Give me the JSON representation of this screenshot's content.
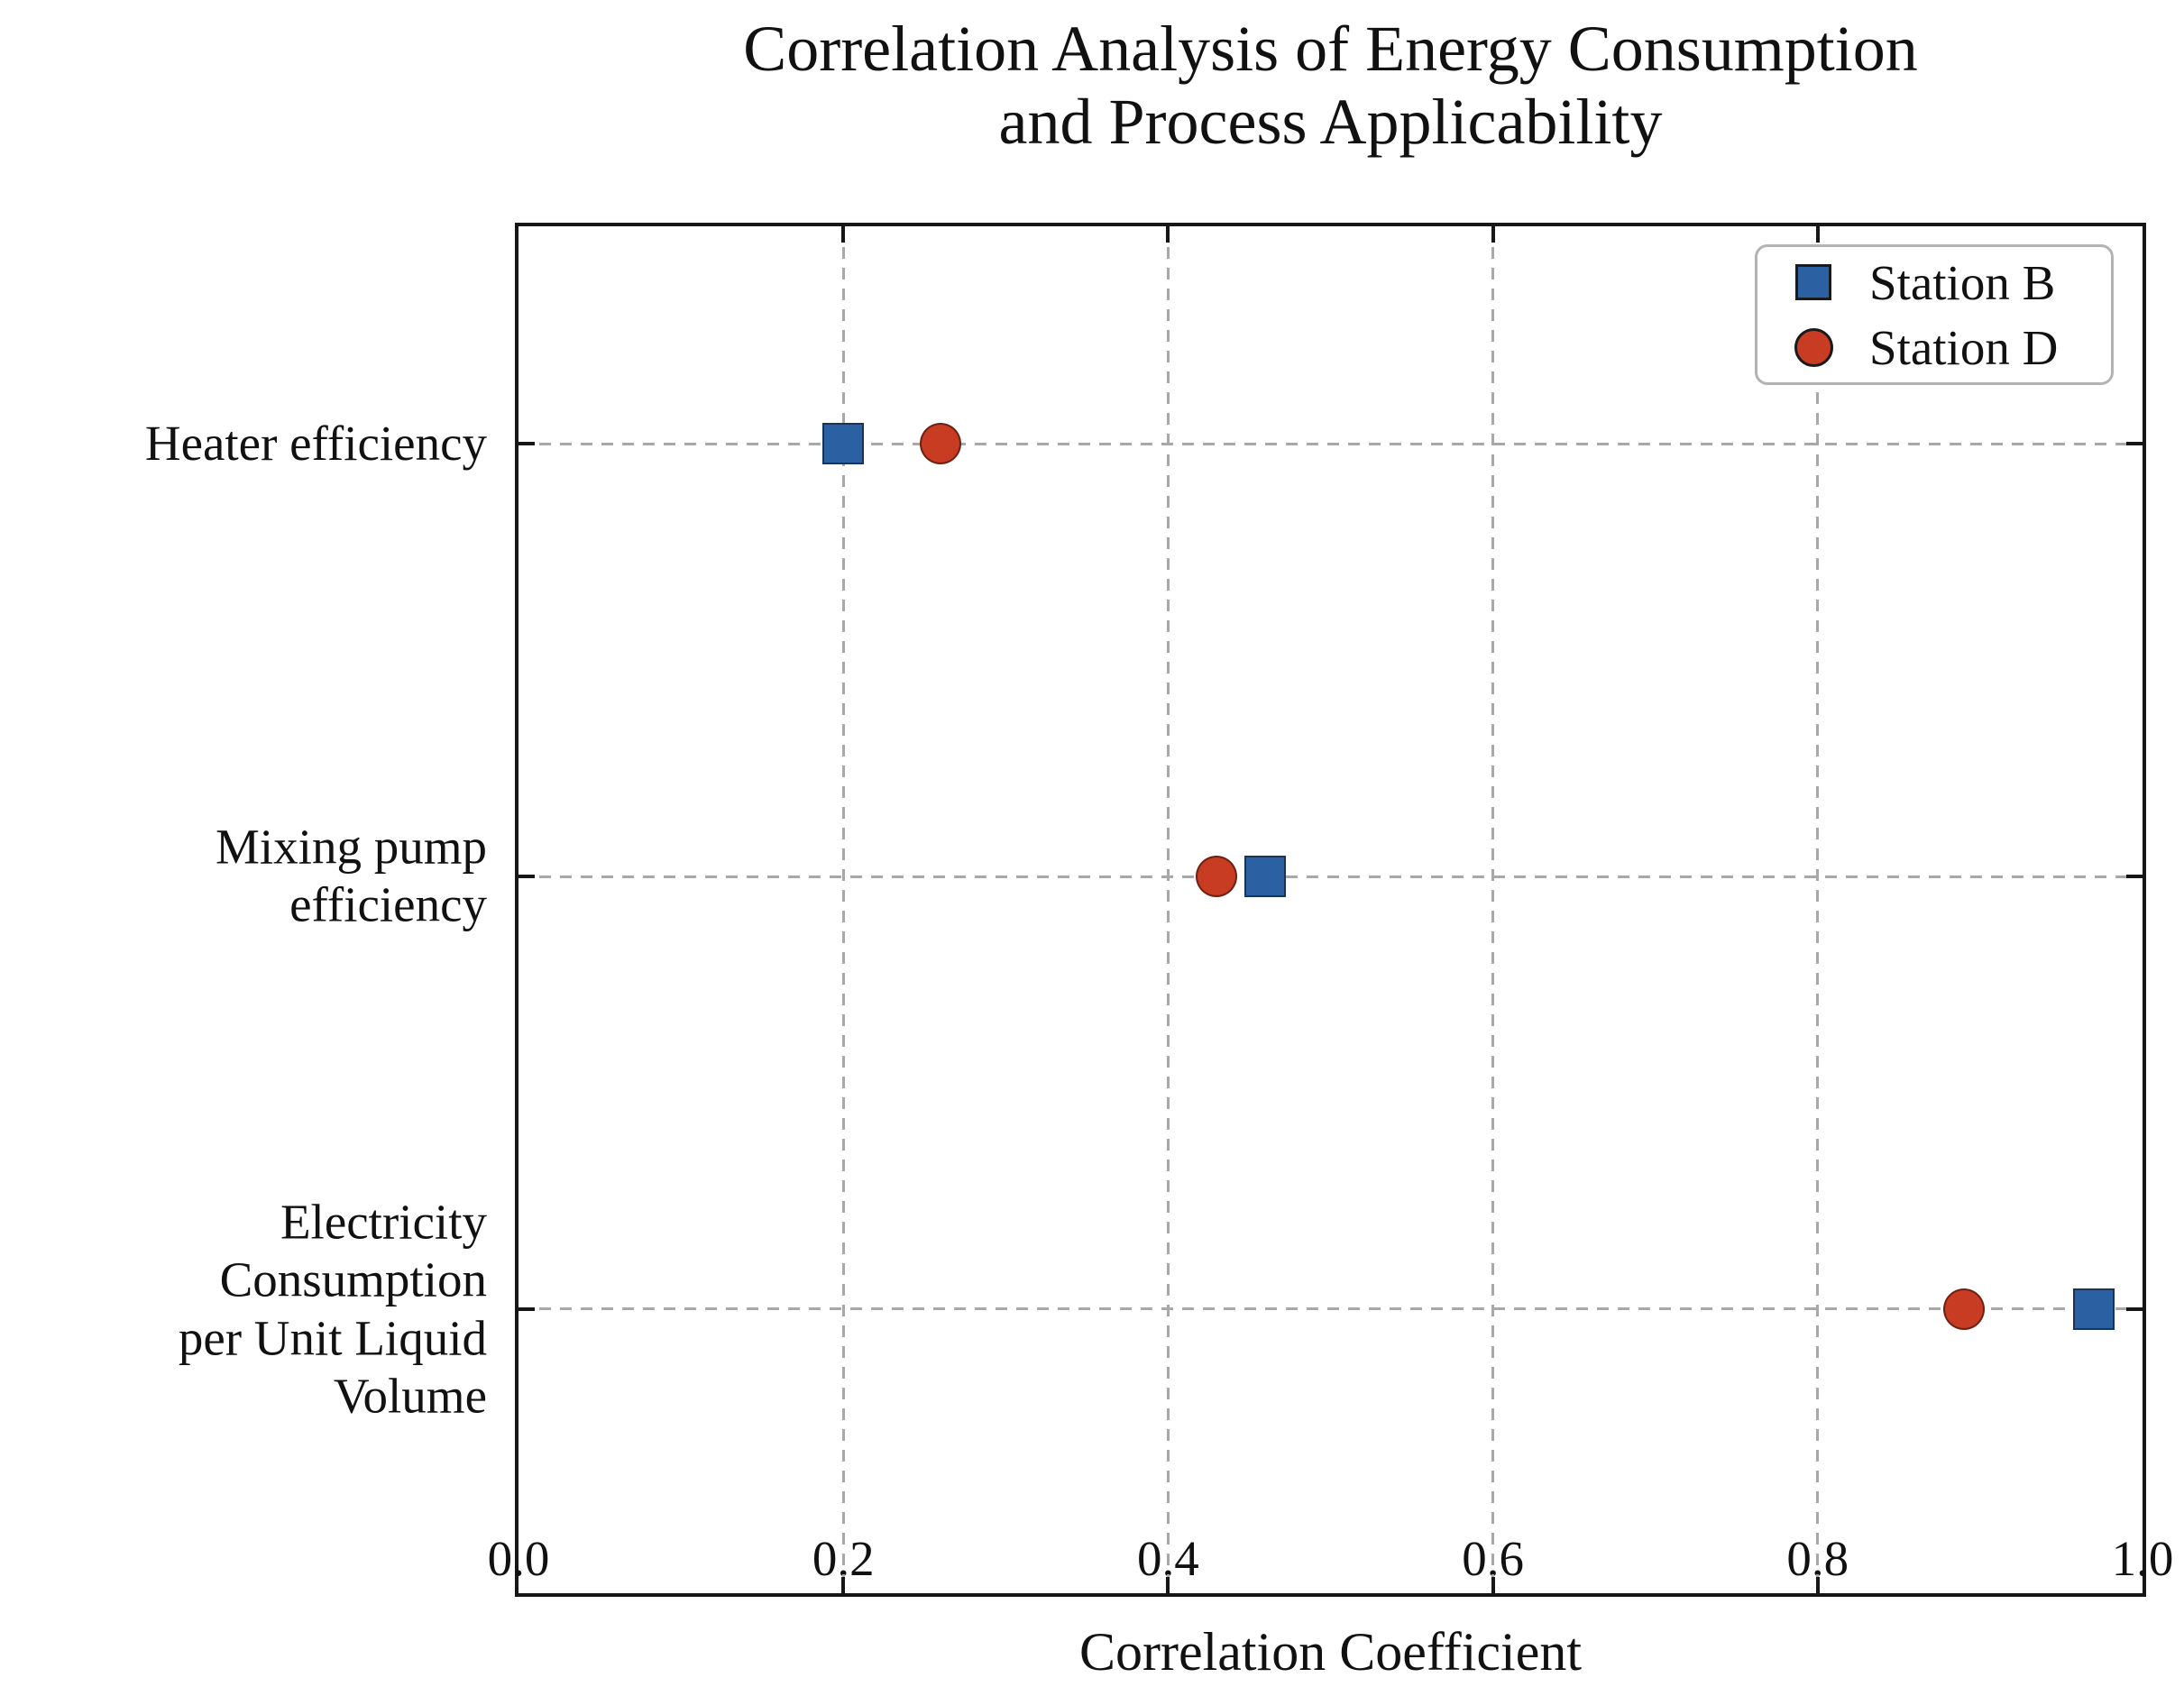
{
  "chart_data": {
    "type": "scatter",
    "title": "Correlation Analysis of Energy Consumption\nand Process Applicability",
    "xlabel": "Correlation Coefficient",
    "xlim": [
      0.0,
      1.0
    ],
    "x_ticks": [
      0.0,
      0.2,
      0.4,
      0.6,
      0.8,
      1.0
    ],
    "x_tick_labels": [
      "0.0",
      "0.2",
      "0.4",
      "0.6",
      "0.8",
      "1.0"
    ],
    "categories": [
      "Heater efficiency",
      "Mixing pump\nefficiency",
      "Electricity Consumption\nper Unit Liquid Volume"
    ],
    "series": [
      {
        "name": "Station B",
        "marker": "square",
        "color": "#2b60a3",
        "values": [
          0.2,
          0.46,
          0.97
        ]
      },
      {
        "name": "Station D",
        "marker": "circle",
        "color": "#c83c24",
        "values": [
          0.26,
          0.43,
          0.89
        ]
      }
    ],
    "grid": "dashed",
    "legend_position": "upper right",
    "colors": {
      "axis": "#161616",
      "grid": "#a8a8a8",
      "station_b": "#2b60a3",
      "station_d": "#c83c24"
    }
  }
}
